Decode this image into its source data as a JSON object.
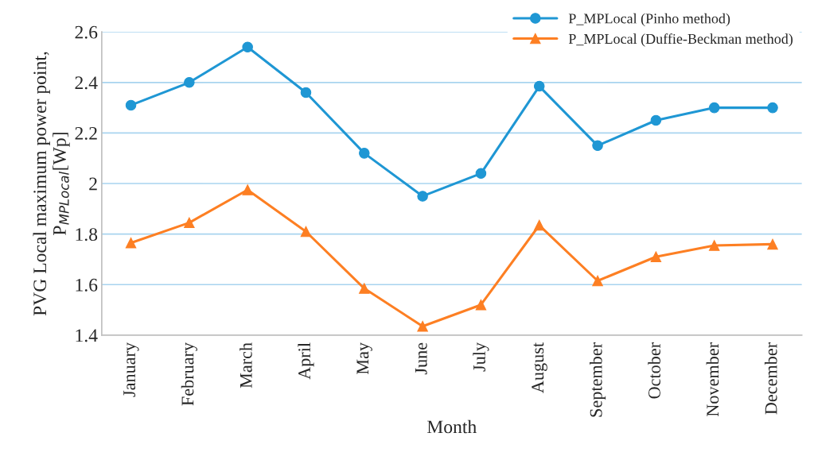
{
  "chart_data": {
    "type": "line",
    "xlabel": "Month",
    "ylabel": "PVG Local maximum power point,\nP$_{MPLocal}$[Wp]",
    "categories": [
      "January",
      "February",
      "March",
      "April",
      "May",
      "June",
      "July",
      "August",
      "September",
      "October",
      "November",
      "December"
    ],
    "series": [
      {
        "name": "P_MPLocal (Pinho method)",
        "color": "#1f97d4",
        "marker": "circle",
        "values": [
          2.31,
          2.4,
          2.54,
          2.36,
          2.12,
          1.95,
          2.04,
          2.385,
          2.15,
          2.25,
          2.3,
          2.3
        ]
      },
      {
        "name": "P_MPLocal (Duffie-Beckman method)",
        "color": "#fd7f23",
        "marker": "triangle",
        "values": [
          1.765,
          1.845,
          1.975,
          1.81,
          1.585,
          1.435,
          1.52,
          1.835,
          1.615,
          1.71,
          1.755,
          1.76
        ]
      }
    ],
    "ylim": [
      1.4,
      2.6
    ],
    "yticks": [
      {
        "value": 1.4,
        "label": "1.4"
      },
      {
        "value": 1.6,
        "label": "1.6"
      },
      {
        "value": 1.8,
        "label": "1.8"
      },
      2,
      {
        "value": 2.2,
        "label": "2.2"
      },
      {
        "value": 2.4,
        "label": "2.4"
      },
      {
        "value": 2.6,
        "label": "2.6"
      }
    ],
    "grid": "y",
    "legend": "top right",
    "line_style": "solid"
  }
}
